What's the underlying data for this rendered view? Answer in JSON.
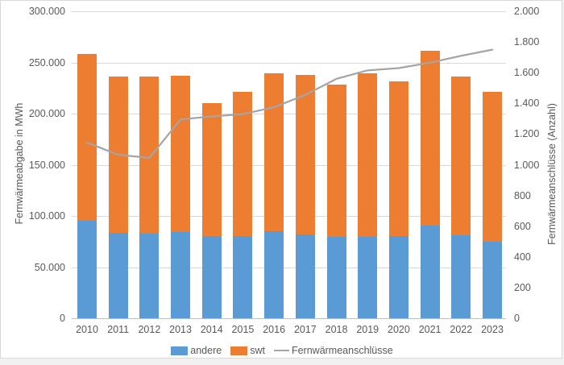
{
  "chart_data": {
    "type": "bar",
    "subtype": "stacked-column-with-secondary-axis-line",
    "title": "",
    "categories": [
      "2010",
      "2011",
      "2012",
      "2013",
      "2014",
      "2015",
      "2016",
      "2017",
      "2018",
      "2019",
      "2020",
      "2021",
      "2022",
      "2023"
    ],
    "series": [
      {
        "name": "andere",
        "kind": "bar",
        "stacked": true,
        "color": "#5B9BD5",
        "values": [
          95000,
          83500,
          83000,
          84500,
          80000,
          80000,
          85000,
          82000,
          79500,
          79500,
          80500,
          90500,
          81000,
          75000
        ]
      },
      {
        "name": "swt",
        "kind": "bar",
        "stacked": true,
        "color": "#ED7D31",
        "values": [
          163000,
          152500,
          153000,
          152500,
          130000,
          141500,
          154500,
          156000,
          148500,
          160000,
          151000,
          171000,
          155500,
          146500
        ]
      },
      {
        "name": "Fernwärmeanschlüsse",
        "kind": "line",
        "axis": "right",
        "color": "#A5A5A5",
        "values": [
          1145,
          1065,
          1045,
          1295,
          1315,
          1330,
          1375,
          1455,
          1560,
          1615,
          1630,
          1665,
          1710,
          1750
        ]
      }
    ],
    "stacked_totals": [
      258000,
      236000,
      236000,
      237000,
      210000,
      221500,
      239500,
      238000,
      228000,
      239500,
      231500,
      261500,
      236500,
      221500
    ],
    "left_axis": {
      "label": "Fernwärmeabgabe in MWh",
      "min": 0,
      "max": 300000,
      "tick_step": 50000,
      "tick_labels": [
        "0",
        "50.000",
        "100.000",
        "150.000",
        "200.000",
        "250.000",
        "300.000"
      ]
    },
    "right_axis": {
      "label": "Fernwärmeanschlüsse (Anzahl)",
      "min": 0,
      "max": 2000,
      "tick_step": 200,
      "tick_labels": [
        "0",
        "200",
        "400",
        "600",
        "800",
        "1.000",
        "1.200",
        "1.400",
        "1.600",
        "1.800",
        "2.000"
      ]
    },
    "legend": {
      "position": "bottom",
      "items": [
        "andere",
        "swt",
        "Fernwärmeanschlüsse"
      ]
    },
    "grid": true,
    "colors": {
      "grid": "#D9D9D9",
      "axis_line": "#BFBFBF",
      "text": "#595959",
      "background": "#FFFFFF",
      "border": "#D9D9D9"
    }
  }
}
